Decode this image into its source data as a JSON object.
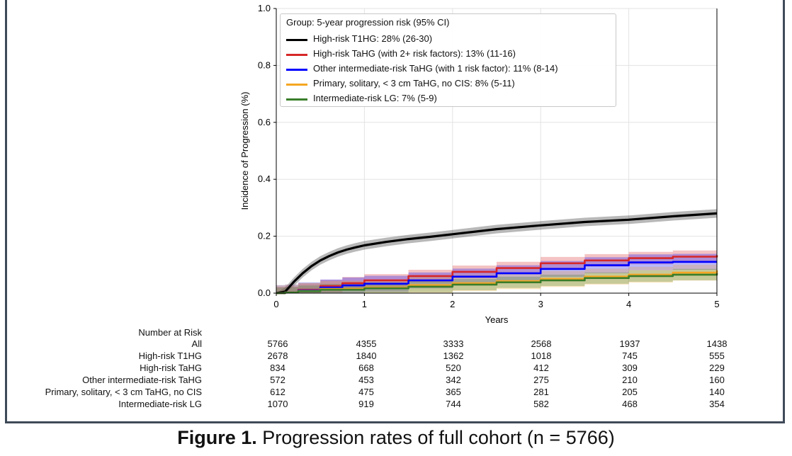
{
  "chart_data": {
    "type": "line",
    "title": "",
    "xlabel": "Years",
    "ylabel": "Incidence of Progression (%)",
    "xlim": [
      0,
      5
    ],
    "ylim": [
      0,
      1.0
    ],
    "xticks": [
      "0",
      "1",
      "2",
      "3",
      "4",
      "5"
    ],
    "yticks": [
      "0.0",
      "0.2",
      "0.4",
      "0.6",
      "0.8",
      "1.0"
    ],
    "grid": true,
    "legend_placement": "top-left",
    "legend_title": "Group: 5-year progression risk (95% CI)",
    "series": [
      {
        "name": "High-risk T1HG: 28% (26-30)",
        "color": "#000000",
        "x": [
          0,
          0.1,
          0.2,
          0.3,
          0.4,
          0.5,
          0.6,
          0.7,
          0.8,
          0.9,
          1.0,
          1.25,
          1.5,
          1.75,
          2.0,
          2.5,
          3.0,
          3.5,
          4.0,
          4.5,
          5.0
        ],
        "y": [
          0,
          0.005,
          0.04,
          0.07,
          0.095,
          0.115,
          0.13,
          0.143,
          0.153,
          0.161,
          0.168,
          0.18,
          0.19,
          0.198,
          0.207,
          0.225,
          0.238,
          0.25,
          0.258,
          0.27,
          0.28
        ],
        "ci_halfwidth": 0.015
      },
      {
        "name": "High-risk TaHG (with 2+ risk factors): 13% (11-16)",
        "color": "#d62728",
        "x": [
          0,
          0.1,
          0.25,
          0.5,
          0.75,
          1.0,
          1.5,
          2.0,
          2.5,
          3.0,
          3.5,
          4.0,
          4.5,
          5.0
        ],
        "y": [
          0,
          0.002,
          0.012,
          0.025,
          0.035,
          0.045,
          0.06,
          0.075,
          0.088,
          0.105,
          0.115,
          0.123,
          0.128,
          0.133
        ],
        "ci_halfwidth": 0.022
      },
      {
        "name": "Other intermediate-risk TaHG (with 1 risk factor): 11% (8-14)",
        "color": "#0000ff",
        "x": [
          0,
          0.1,
          0.25,
          0.5,
          0.75,
          1.0,
          1.5,
          2.0,
          2.5,
          3.0,
          3.5,
          4.0,
          4.5,
          5.0
        ],
        "y": [
          0,
          0.002,
          0.01,
          0.02,
          0.027,
          0.033,
          0.045,
          0.058,
          0.07,
          0.085,
          0.098,
          0.108,
          0.11,
          0.11
        ],
        "ci_halfwidth": 0.028
      },
      {
        "name": "Primary, solitary, < 3 cm TaHG, no CIS: 8% (5-11)",
        "color": "#f5a623",
        "x": [
          0,
          0.1,
          0.25,
          0.5,
          1.0,
          1.5,
          2.0,
          2.5,
          3.0,
          3.5,
          4.0,
          4.5,
          5.0
        ],
        "y": [
          0,
          0.002,
          0.008,
          0.015,
          0.02,
          0.028,
          0.035,
          0.042,
          0.05,
          0.058,
          0.065,
          0.072,
          0.08
        ],
        "ci_halfwidth": 0.028
      },
      {
        "name": "Intermediate-risk LG: 7% (5-9)",
        "color": "#3a7d2a",
        "x": [
          0,
          0.1,
          0.25,
          0.5,
          1.0,
          1.5,
          2.0,
          2.5,
          3.0,
          3.5,
          4.0,
          4.5,
          5.0
        ],
        "y": [
          0,
          0.002,
          0.007,
          0.012,
          0.017,
          0.023,
          0.03,
          0.038,
          0.045,
          0.053,
          0.06,
          0.065,
          0.07
        ],
        "ci_halfwidth": 0.02
      }
    ]
  },
  "risk_table": {
    "title": "Number at Risk",
    "rows": [
      {
        "label": "All",
        "values": [
          "5766",
          "4355",
          "3333",
          "2568",
          "1937",
          "1438"
        ]
      },
      {
        "label": "High-risk T1HG",
        "values": [
          "2678",
          "1840",
          "1362",
          "1018",
          "745",
          "555"
        ]
      },
      {
        "label": "High-risk TaHG",
        "values": [
          "834",
          "668",
          "520",
          "412",
          "309",
          "229"
        ]
      },
      {
        "label": "Other intermediate-risk TaHG",
        "values": [
          "572",
          "453",
          "342",
          "275",
          "210",
          "160"
        ]
      },
      {
        "label": "Primary, solitary, < 3 cm TaHG, no CIS",
        "values": [
          "612",
          "475",
          "365",
          "281",
          "205",
          "140"
        ]
      },
      {
        "label": "Intermediate-risk LG",
        "values": [
          "1070",
          "919",
          "744",
          "582",
          "468",
          "354"
        ]
      }
    ]
  },
  "caption": {
    "bold": "Figure 1.",
    "text": " Progression rates of full cohort (n = 5766)"
  }
}
